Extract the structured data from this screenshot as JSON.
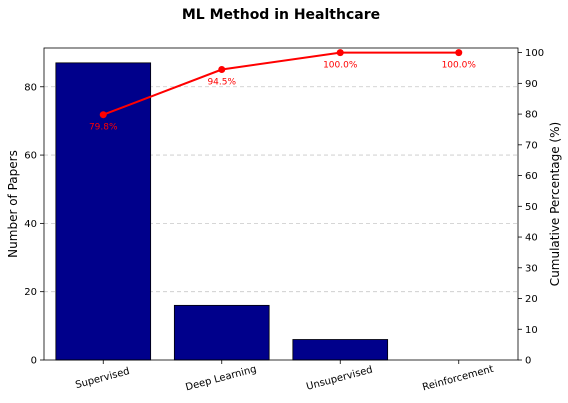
{
  "chart_data": {
    "type": "bar",
    "title": "ML Method in Healthcare",
    "xlabel": "",
    "ylabel": "Number of Papers",
    "ylabel_right": "Cumulative Percentage (%)",
    "categories": [
      "Supervised",
      "Deep Learning",
      "Unsupervised",
      "Reinforcement"
    ],
    "series": [
      {
        "type": "bar",
        "values": [
          87,
          16,
          6,
          0
        ],
        "axis": "left"
      },
      {
        "type": "line",
        "values": [
          79.8,
          94.5,
          100.0,
          100.0
        ],
        "labels": [
          "79.8%",
          "94.5%",
          "100.0%",
          "100.0%"
        ],
        "axis": "right"
      }
    ],
    "ylim": [
      0,
      91.35
    ],
    "ylim_right": [
      0,
      101.5
    ],
    "yticks": [
      0,
      20,
      40,
      60,
      80
    ],
    "yticks_right": [
      0,
      10,
      20,
      30,
      40,
      50,
      60,
      70,
      80,
      90,
      100
    ],
    "grid": true,
    "colors": {
      "bar": "#00008b",
      "bar_edge": "#000000",
      "line": "#ff0000",
      "grid": "#c8c8c8"
    }
  }
}
